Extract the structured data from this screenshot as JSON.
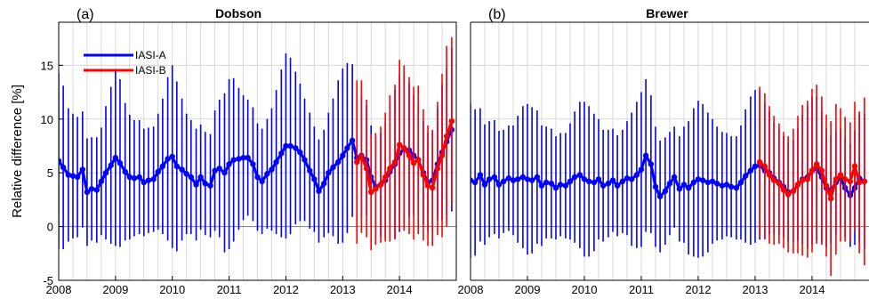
{
  "chart_data": [
    {
      "type": "line",
      "panel_label": "(a)",
      "title": "Dobson",
      "ylabel": "Relative difference [%]",
      "xlabel": "",
      "xlim": [
        2008.0,
        2015.0
      ],
      "ylim": [
        -5,
        19
      ],
      "xticks": [
        "2008",
        "2009",
        "2010",
        "2011",
        "2012",
        "2013",
        "2014"
      ],
      "yticks": [
        "-5",
        "0",
        "5",
        "10",
        "15"
      ],
      "grid": true,
      "legend_position": "top-left",
      "series": [
        {
          "name": "IASI-A",
          "color": "#0000ff",
          "x": [
            2008.0,
            2008.08,
            2008.17,
            2008.25,
            2008.33,
            2008.42,
            2008.5,
            2008.58,
            2008.67,
            2008.75,
            2008.83,
            2008.92,
            2009.0,
            2009.08,
            2009.17,
            2009.25,
            2009.33,
            2009.42,
            2009.5,
            2009.58,
            2009.67,
            2009.75,
            2009.83,
            2009.92,
            2010.0,
            2010.08,
            2010.17,
            2010.25,
            2010.33,
            2010.42,
            2010.5,
            2010.58,
            2010.67,
            2010.75,
            2010.83,
            2010.92,
            2011.0,
            2011.08,
            2011.17,
            2011.25,
            2011.33,
            2011.42,
            2011.5,
            2011.58,
            2011.67,
            2011.75,
            2011.83,
            2011.92,
            2012.0,
            2012.08,
            2012.17,
            2012.25,
            2012.33,
            2012.42,
            2012.5,
            2012.58,
            2012.67,
            2012.75,
            2012.83,
            2012.92,
            2013.0,
            2013.08,
            2013.17,
            2013.25,
            2013.33,
            2013.42,
            2013.5,
            2013.58,
            2013.67,
            2013.75,
            2013.83,
            2013.92,
            2014.0,
            2014.08,
            2014.17,
            2014.25,
            2014.33,
            2014.42,
            2014.5,
            2014.58,
            2014.67,
            2014.75,
            2014.83,
            2014.92
          ],
          "y": [
            6.1,
            5.5,
            4.8,
            4.7,
            4.6,
            5.3,
            3.2,
            3.5,
            3.4,
            4.2,
            5.0,
            5.7,
            6.4,
            5.9,
            5.1,
            4.6,
            4.5,
            4.6,
            4.1,
            4.3,
            4.4,
            5.1,
            5.6,
            6.3,
            6.5,
            5.6,
            5.3,
            4.9,
            4.6,
            3.9,
            4.6,
            4.0,
            3.8,
            5.2,
            5.4,
            5.0,
            5.8,
            6.2,
            6.3,
            6.4,
            6.4,
            5.8,
            4.6,
            4.2,
            4.9,
            5.3,
            6.0,
            6.8,
            7.5,
            7.5,
            7.3,
            6.9,
            6.2,
            5.2,
            4.4,
            3.3,
            4.0,
            5.0,
            5.5,
            6.0,
            6.6,
            7.3,
            8.0,
            6.4,
            6.6,
            6.2,
            4.6,
            3.7,
            3.9,
            4.3,
            5.1,
            5.8,
            6.8,
            7.2,
            7.1,
            6.6,
            6.2,
            5.0,
            4.1,
            4.3,
            5.8,
            6.9,
            7.9,
            9.0
          ],
          "err": [
            8.2,
            7.6,
            6.2,
            5.8,
            5.6,
            5.4,
            5.0,
            4.8,
            4.9,
            5.0,
            6.2,
            7.3,
            8.2,
            7.8,
            6.4,
            5.8,
            5.4,
            5.3,
            5.0,
            4.9,
            4.9,
            5.4,
            6.3,
            7.6,
            8.5,
            7.9,
            6.6,
            5.6,
            5.3,
            5.2,
            4.9,
            4.8,
            4.8,
            5.6,
            6.4,
            7.4,
            7.9,
            7.6,
            6.6,
            5.8,
            5.4,
            5.3,
            5.0,
            4.9,
            5.1,
            5.7,
            6.7,
            7.8,
            8.6,
            8.2,
            7.1,
            6.4,
            5.7,
            5.4,
            4.9,
            4.8,
            5.0,
            5.6,
            6.4,
            7.6,
            8.1,
            7.9,
            7.1,
            6.3,
            5.6,
            5.1,
            4.8,
            4.7,
            4.8,
            5.4,
            6.3,
            6.9,
            7.3,
            7.1,
            6.2,
            5.6,
            5.1,
            4.8,
            4.6,
            4.6,
            5.2,
            6.3,
            6.8,
            7.6
          ]
        },
        {
          "name": "IASI-B",
          "color": "#ff0000",
          "x": [
            2013.25,
            2013.33,
            2013.42,
            2013.5,
            2013.58,
            2013.67,
            2013.75,
            2013.83,
            2013.92,
            2014.0,
            2014.08,
            2014.17,
            2014.25,
            2014.33,
            2014.42,
            2014.5,
            2014.58,
            2014.67,
            2014.75,
            2014.83,
            2014.92
          ],
          "y": [
            6.0,
            6.5,
            5.4,
            3.2,
            3.5,
            3.9,
            4.6,
            5.4,
            6.0,
            7.6,
            7.3,
            6.6,
            5.9,
            6.2,
            4.8,
            3.8,
            3.6,
            5.4,
            6.6,
            8.4,
            9.8
          ],
          "err": [
            7.6,
            7.1,
            6.4,
            5.4,
            5.2,
            5.4,
            6.0,
            6.8,
            7.2,
            7.9,
            7.7,
            7.3,
            7.1,
            6.9,
            6.1,
            5.6,
            5.4,
            6.2,
            7.6,
            8.4,
            7.8
          ]
        }
      ]
    },
    {
      "type": "line",
      "panel_label": "(b)",
      "title": "Brewer",
      "ylabel": "",
      "xlabel": "",
      "xlim": [
        2008.0,
        2015.0
      ],
      "ylim": [
        -5,
        19
      ],
      "xticks": [
        "2008",
        "2009",
        "2010",
        "2011",
        "2012",
        "2013",
        "2014"
      ],
      "yticks": [],
      "grid": true,
      "series": [
        {
          "name": "IASI-A",
          "color": "#0000ff",
          "x": [
            2008.0,
            2008.08,
            2008.17,
            2008.25,
            2008.33,
            2008.42,
            2008.5,
            2008.58,
            2008.67,
            2008.75,
            2008.83,
            2008.92,
            2009.0,
            2009.08,
            2009.17,
            2009.25,
            2009.33,
            2009.42,
            2009.5,
            2009.58,
            2009.67,
            2009.75,
            2009.83,
            2009.92,
            2010.0,
            2010.08,
            2010.17,
            2010.25,
            2010.33,
            2010.42,
            2010.5,
            2010.58,
            2010.67,
            2010.75,
            2010.83,
            2010.92,
            2011.0,
            2011.08,
            2011.17,
            2011.25,
            2011.33,
            2011.42,
            2011.5,
            2011.58,
            2011.67,
            2011.75,
            2011.83,
            2011.92,
            2012.0,
            2012.08,
            2012.17,
            2012.25,
            2012.33,
            2012.42,
            2012.5,
            2012.58,
            2012.67,
            2012.75,
            2012.83,
            2012.92,
            2013.0,
            2013.08,
            2013.17,
            2013.25,
            2013.33,
            2013.42,
            2013.5,
            2013.58,
            2013.67,
            2013.75,
            2013.83,
            2013.92,
            2014.0,
            2014.08,
            2014.17,
            2014.25,
            2014.33,
            2014.42,
            2014.5,
            2014.58,
            2014.67,
            2014.75,
            2014.83,
            2014.92
          ],
          "y": [
            4.3,
            4.1,
            4.8,
            3.9,
            4.4,
            4.6,
            3.9,
            4.2,
            4.5,
            4.3,
            4.4,
            4.6,
            4.4,
            4.3,
            4.6,
            3.8,
            4.1,
            4.0,
            3.6,
            3.9,
            3.8,
            4.2,
            4.6,
            4.8,
            4.4,
            4.2,
            4.1,
            4.4,
            3.8,
            4.0,
            4.3,
            3.8,
            4.2,
            4.5,
            4.4,
            4.8,
            5.3,
            6.6,
            5.8,
            3.7,
            2.8,
            3.3,
            4.0,
            4.6,
            3.5,
            3.9,
            3.6,
            4.1,
            4.4,
            4.3,
            4.1,
            4.2,
            4.0,
            3.8,
            3.9,
            3.7,
            3.6,
            4.1,
            4.7,
            5.2,
            5.6,
            5.7,
            5.2,
            5.0,
            4.5,
            4.1,
            3.7,
            3.2,
            3.3,
            3.9,
            4.4,
            4.6,
            5.2,
            5.4,
            4.6,
            3.6,
            3.4,
            4.1,
            4.5,
            3.6,
            2.9,
            3.6,
            4.5,
            4.2
          ],
          "err": [
            7.2,
            6.8,
            6.2,
            5.6,
            5.4,
            5.3,
            5.0,
            4.8,
            4.9,
            5.1,
            5.9,
            6.6,
            7.0,
            6.8,
            6.2,
            5.6,
            5.2,
            5.1,
            4.8,
            4.8,
            4.9,
            5.4,
            6.1,
            6.8,
            7.2,
            7.0,
            6.4,
            5.6,
            5.2,
            5.0,
            4.8,
            4.7,
            4.8,
            5.3,
            6.2,
            6.8,
            7.2,
            7.1,
            6.4,
            5.6,
            5.2,
            5.0,
            4.8,
            4.7,
            4.9,
            5.4,
            6.2,
            6.9,
            7.3,
            7.1,
            6.5,
            5.8,
            5.3,
            5.0,
            4.8,
            4.7,
            4.8,
            5.3,
            6.2,
            6.9,
            7.1,
            6.9,
            6.3,
            5.7,
            5.2,
            4.9,
            4.7,
            4.6,
            4.7,
            5.2,
            6.0,
            6.6,
            6.9,
            6.7,
            6.1,
            5.5,
            5.0,
            4.8,
            4.6,
            4.6,
            4.8,
            5.3,
            5.9,
            6.3
          ]
        },
        {
          "name": "IASI-B",
          "color": "#ff0000",
          "x": [
            2013.08,
            2013.17,
            2013.25,
            2013.33,
            2013.42,
            2013.5,
            2013.58,
            2013.67,
            2013.75,
            2013.83,
            2013.92,
            2014.0,
            2014.08,
            2014.17,
            2014.25,
            2014.33,
            2014.42,
            2014.5,
            2014.58,
            2014.67,
            2014.75,
            2014.83,
            2014.92
          ],
          "y": [
            6.0,
            5.6,
            4.8,
            4.3,
            4.0,
            3.4,
            3.0,
            3.3,
            3.9,
            4.3,
            4.4,
            5.2,
            5.8,
            5.2,
            3.8,
            2.6,
            4.4,
            4.8,
            4.4,
            4.2,
            5.6,
            4.1,
            4.2
          ],
          "err": [
            7.0,
            6.8,
            6.4,
            6.0,
            5.6,
            5.4,
            5.4,
            5.8,
            6.4,
            7.0,
            7.3,
            7.6,
            7.4,
            6.9,
            6.6,
            7.2,
            7.0,
            6.2,
            5.8,
            5.5,
            6.0,
            6.6,
            7.8
          ]
        }
      ]
    }
  ]
}
